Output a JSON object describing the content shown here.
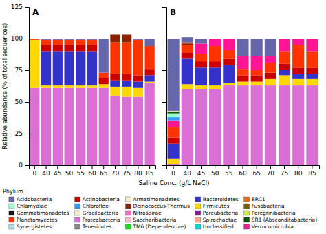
{
  "chart_data": [
    {
      "type": "bar",
      "stacked": true,
      "title": "A",
      "y_label": "Relative abundance (% of total sequences)",
      "categories": [
        "0",
        "40",
        "45",
        "50",
        "55",
        "60",
        "65",
        "70",
        "75",
        "80",
        "85"
      ],
      "series": [
        {
          "name": "Proteobacteria",
          "color": "#DA70D6",
          "values": [
            61,
            61,
            61,
            61,
            61,
            61,
            61,
            55,
            54,
            54,
            65
          ]
        },
        {
          "name": "Firmicutes",
          "color": "#FFD700",
          "values": [
            38,
            2,
            2,
            2,
            2,
            2,
            3,
            7,
            8,
            7,
            1
          ]
        },
        {
          "name": "Bacteroidetes",
          "color": "#3333CC",
          "values": [
            0,
            27,
            27,
            27,
            27,
            27,
            0,
            5,
            5,
            5,
            5
          ]
        },
        {
          "name": "Actinobacteria",
          "color": "#CC0000",
          "values": [
            0,
            5,
            5,
            5,
            5,
            5,
            5,
            5,
            5,
            5,
            5
          ]
        },
        {
          "name": "Planctomycetes",
          "color": "#FF3300",
          "values": [
            1,
            4,
            4,
            4,
            4,
            4,
            4,
            25,
            25,
            28,
            18
          ]
        },
        {
          "name": "Deinococcus-Thermus",
          "color": "#8B2200",
          "values": [
            0,
            0,
            0,
            0,
            0,
            0,
            0,
            3,
            3,
            0,
            0
          ]
        },
        {
          "name": "Deinococcus-Thermus",
          "color": "#8B2200",
          "values": [
            0,
            0,
            0,
            0,
            0,
            0,
            0,
            3,
            3,
            0,
            0
          ]
        },
        {
          "name": "Acidobacteria",
          "color": "#6666AA",
          "values": [
            0,
            1,
            1,
            1,
            1,
            1,
            27,
            0,
            0,
            1,
            6
          ]
        }
      ],
      "ylim": [
        0,
        125
      ],
      "yticks": [
        0,
        25,
        50,
        75,
        100,
        125
      ]
    },
    {
      "type": "bar",
      "stacked": true,
      "title": "B",
      "tick_labels": "x",
      "categories": [
        "0",
        "40",
        "45",
        "50",
        "55",
        "60",
        "65",
        "70",
        "75",
        "80",
        "85"
      ],
      "series": [
        {
          "name": "Proteobacteria",
          "color": "#DA70D6",
          "values": [
            1,
            60,
            60,
            60,
            63,
            63,
            63,
            63,
            63,
            63,
            63
          ]
        },
        {
          "name": "Firmicutes",
          "color": "#FFD700",
          "values": [
            4,
            4,
            3,
            3,
            2,
            3,
            3,
            5,
            8,
            5,
            5
          ]
        },
        {
          "name": "Bacteroidetes",
          "color": "#3333CC",
          "values": [
            12,
            20,
            14,
            14,
            14,
            0,
            0,
            0,
            4,
            4,
            4
          ]
        },
        {
          "name": "Actinobacteria",
          "color": "#CC0000",
          "values": [
            5,
            5,
            5,
            5,
            5,
            5,
            5,
            5,
            5,
            5,
            5
          ]
        },
        {
          "name": "Planctomycetes",
          "color": "#FF3300",
          "values": [
            8,
            6,
            6,
            12,
            7,
            5,
            4,
            8,
            10,
            18,
            13
          ]
        },
        {
          "name": "Deinococcus-Thermus",
          "color": "#8B2200",
          "values": [
            0,
            1,
            0,
            0,
            0,
            0,
            0,
            0,
            0,
            0,
            0
          ]
        },
        {
          "name": "Verrucomicrobia",
          "color": "#FF1493",
          "values": [
            5,
            0,
            8,
            6,
            9,
            10,
            11,
            5,
            10,
            5,
            10
          ]
        },
        {
          "name": "Chloroflexi",
          "color": "#3399FF",
          "values": [
            3,
            0,
            0,
            0,
            0,
            0,
            0,
            0,
            0,
            0,
            0
          ]
        },
        {
          "name": "Chlamydiae",
          "color": "#99FFCC",
          "values": [
            3,
            0,
            0,
            0,
            0,
            0,
            0,
            0,
            0,
            0,
            0
          ]
        },
        {
          "name": "SR1 (Absconditabacteria)",
          "color": "#005500",
          "values": [
            1,
            0,
            0,
            0,
            0,
            0,
            0,
            0,
            0,
            0,
            0
          ]
        },
        {
          "name": "Gracilbacteria",
          "color": "#F0EED0",
          "values": [
            1,
            0,
            0,
            0,
            0,
            0,
            0,
            0,
            0,
            0,
            0
          ]
        },
        {
          "name": "Deinococcus-Thermus",
          "color": "#8B2200",
          "values": [
            0,
            1,
            0,
            0,
            0,
            0,
            0,
            0,
            0,
            0,
            0
          ]
        },
        {
          "name": "Acidobacteria",
          "color": "#6666AA",
          "values": [
            57,
            4,
            4,
            0,
            0,
            14,
            14,
            14,
            0,
            0,
            0
          ]
        }
      ],
      "ylim": [
        0,
        125
      ],
      "yticks": [
        0,
        25,
        50,
        75,
        100,
        125
      ]
    }
  ],
  "x_label": "Saline Conc. (g/L NaCl)",
  "legend_title": "Phylum",
  "legend_items": [
    {
      "name": "Acidobacteria",
      "color": "#6666AA"
    },
    {
      "name": "Chlamydiae",
      "color": "#99FFCC"
    },
    {
      "name": "Gemmatimonadetes",
      "color": "#111111"
    },
    {
      "name": "Planctomycetes",
      "color": "#FF3300"
    },
    {
      "name": "Synergistetes",
      "color": "#AADDEE"
    },
    {
      "name": "Actinobacteria",
      "color": "#CC0000"
    },
    {
      "name": "Chloroflexi",
      "color": "#3399FF"
    },
    {
      "name": "Gracilbacteria",
      "color": "#F0EED0"
    },
    {
      "name": "Proteobacteria",
      "color": "#DA70D6"
    },
    {
      "name": "Tenericutes",
      "color": "#888888"
    },
    {
      "name": "Armatimonadetes",
      "color": "#FFEECC"
    },
    {
      "name": "Deinococcus-Thermus",
      "color": "#8B2200"
    },
    {
      "name": "Nitrospirae",
      "color": "#FF66CC"
    },
    {
      "name": "Saccharibacteria",
      "color": "#FFBBCC"
    },
    {
      "name": "TM6 (Dependentiae)",
      "color": "#00EE00"
    },
    {
      "name": "Bacteroidetes",
      "color": "#3333CC"
    },
    {
      "name": "Firmicutes",
      "color": "#FFD700"
    },
    {
      "name": "Parcubacteria",
      "color": "#882288"
    },
    {
      "name": "Spirochaetae",
      "color": "#FFAA88"
    },
    {
      "name": "Unclassified",
      "color": "#00DDDD"
    },
    {
      "name": "BRC1",
      "color": "#FF6600"
    },
    {
      "name": "Fusobacteria",
      "color": "#7A5C00"
    },
    {
      "name": "Peregrinibacteria",
      "color": "#CCEE44"
    },
    {
      "name": "SR1 (Absconditabacteria)",
      "color": "#005500"
    },
    {
      "name": "Verrucomicrobia",
      "color": "#FF1493"
    }
  ]
}
